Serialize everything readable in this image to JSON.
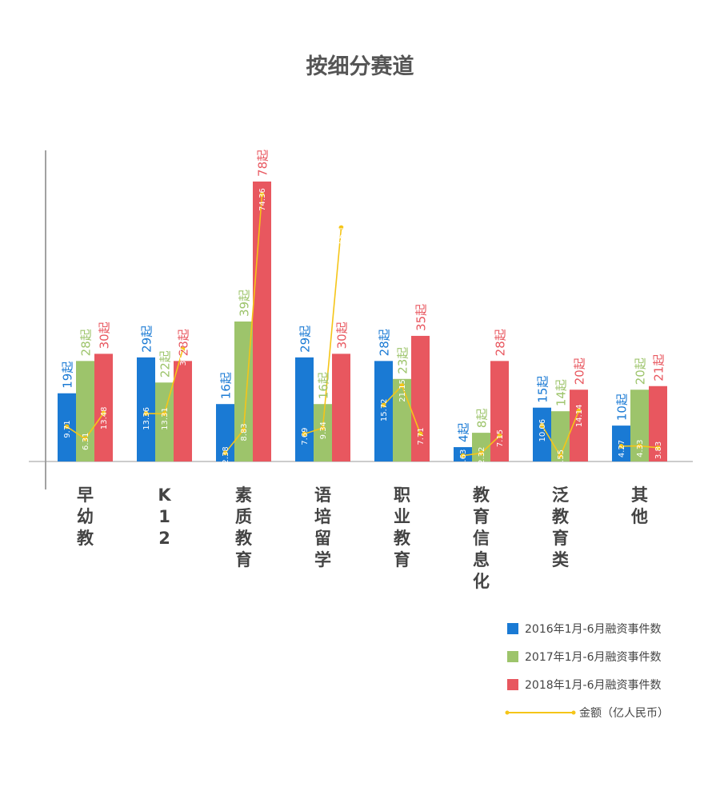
{
  "chart_data": {
    "type": "bar",
    "title": "按细分赛道",
    "categories": [
      "早幼教",
      "K12",
      "素质教育",
      "语培留学",
      "职业教育",
      "教育信息化",
      "泛教育类",
      "其他"
    ],
    "count_suffix": "起",
    "series": [
      {
        "name": "2016年1月-6月融资事件数",
        "color": "#1a7ad4",
        "values": [
          19,
          29,
          16,
          29,
          28,
          4,
          15,
          10
        ],
        "amounts": [
          9.71,
          13.36,
          2.38,
          7.69,
          15.72,
          1.63,
          10.06,
          4.27
        ]
      },
      {
        "name": "2017年1月-6月融资事件数",
        "color": "#9dc46b",
        "values": [
          28,
          22,
          39,
          16,
          23,
          8,
          14,
          20
        ],
        "amounts": [
          6.31,
          13.31,
          8.83,
          9.34,
          21.15,
          2.32,
          1.55,
          4.33
        ]
      },
      {
        "name": "2018年1月-6月融资事件数",
        "color": "#e8575f",
        "values": [
          30,
          28,
          78,
          30,
          35,
          28,
          20,
          21
        ],
        "amounts": [
          13.48,
          31.27,
          74.36,
          65.15,
          7.71,
          7.15,
          14.14,
          3.83
        ]
      }
    ],
    "line": {
      "name": "金额（亿人民币）",
      "color": "#f5c518"
    },
    "ylim": [
      0,
      80
    ],
    "amount_ylim": [
      0,
      80
    ],
    "grid": false,
    "legend_position": "bottom-right"
  }
}
